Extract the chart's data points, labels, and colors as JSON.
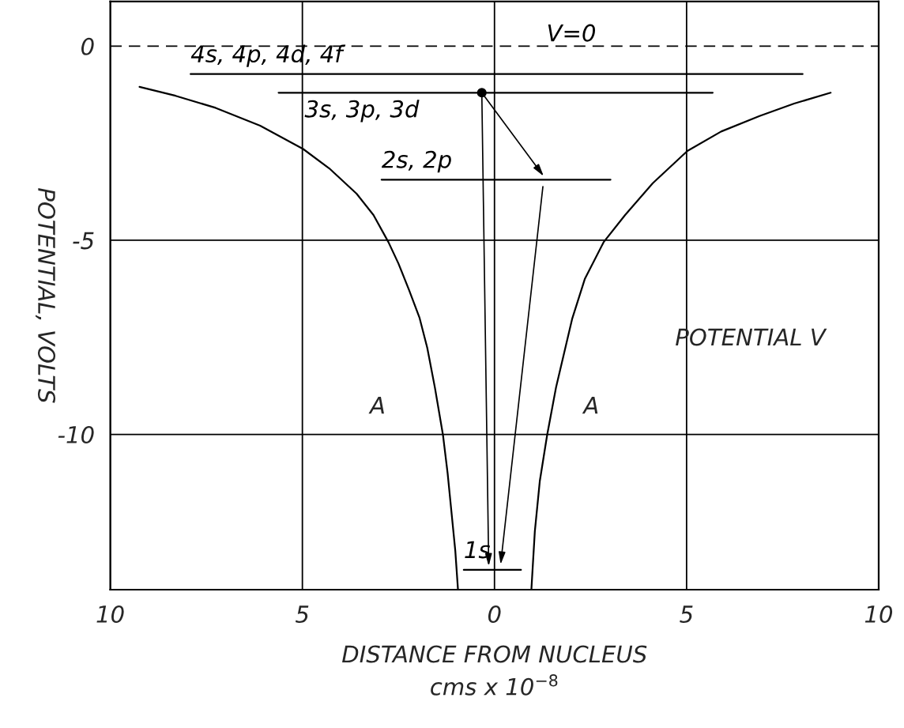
{
  "chart_data": {
    "type": "line",
    "xlabel": "DISTANCE FROM NUCLEUS\ncms x 10$^{−8}$",
    "ylabel": "POTENTIAL, VOLTS",
    "xlim": [
      -10,
      10
    ],
    "ylim": [
      -14,
      1.15
    ],
    "xticks": [
      {
        "value": -10,
        "label": "10"
      },
      {
        "value": -5,
        "label": "5"
      },
      0,
      5,
      10
    ],
    "yticks": [
      0,
      -5,
      -10
    ],
    "grid": true,
    "ref_lines": [
      {
        "axis": "y",
        "value": 0,
        "label": "V=0",
        "line_style": "dashed",
        "color": "#000000"
      }
    ],
    "series": [
      {
        "color": "#000000",
        "x": [
          -9.24,
          -8.3,
          -7.26,
          -6.1,
          -4.98,
          -4.3,
          -3.59,
          -3.15,
          -2.76,
          -2.5,
          -2.22,
          -1.95,
          -1.75,
          -1.55,
          -1.34,
          -1.22,
          -1.11,
          -1.02,
          -0.95
        ],
        "values": [
          -1.05,
          -1.28,
          -1.59,
          -2.05,
          -2.65,
          -3.15,
          -3.8,
          -4.35,
          -5.05,
          -5.6,
          -6.29,
          -7.0,
          -7.77,
          -8.8,
          -10.02,
          -11.0,
          -12.1,
          -13.0,
          -14
        ]
      },
      {
        "color": "#000000",
        "x": [
          0.96,
          1.05,
          1.18,
          1.37,
          1.6,
          2.02,
          2.35,
          2.84,
          3.4,
          4.12,
          5.02,
          5.9,
          6.9,
          7.8,
          8.75
        ],
        "values": [
          -14,
          -12.5,
          -11.2,
          -10.02,
          -8.8,
          -7.03,
          -6.0,
          -5.05,
          -4.35,
          -3.53,
          -2.7,
          -2.2,
          -1.8,
          -1.48,
          -1.2
        ]
      },
      {
        "name": "4s, 4p, 4d, 4f",
        "color": "#000000",
        "x": [
          -7.91,
          8.02
        ],
        "values": [
          -0.72,
          -0.72
        ]
      },
      {
        "name": "3s, 3p, 3d",
        "color": "#000000",
        "x": [
          -5.62,
          5.68
        ],
        "values": [
          -1.2,
          -1.2
        ]
      },
      {
        "name": "2s, 2p",
        "color": "#000000",
        "x": [
          -2.94,
          3.02
        ],
        "values": [
          -3.44,
          -3.44
        ]
      },
      {
        "name": "1s",
        "color": "#000000",
        "x": [
          -0.8,
          0.69
        ],
        "values": [
          -13.49,
          -13.49
        ]
      },
      {
        "type": "scatter",
        "color": "#000000",
        "marker": "circle",
        "x": [
          -0.33
        ],
        "values": [
          -1.2
        ]
      }
    ],
    "annotations": [
      "A",
      "A",
      "POTENTIAL V"
    ]
  }
}
